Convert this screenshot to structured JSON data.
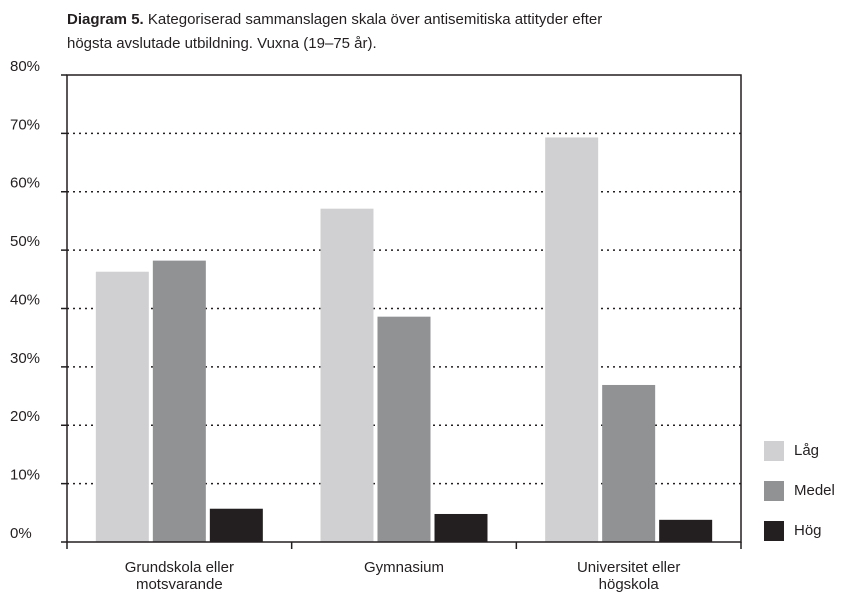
{
  "chart_data": {
    "type": "bar",
    "title": {
      "label": "Diagram 5.",
      "lines": [
        "Kategoriserad sammanslagen skala över antisemitiska attityder efter",
        "högsta avslutade utbildning. Vuxna (19–75 år)."
      ]
    },
    "categories": [
      [
        "Grundskola eller",
        "motsvarande"
      ],
      [
        "Gymnasium"
      ],
      [
        "Universitet eller",
        "högskola"
      ]
    ],
    "series": [
      {
        "name": "Låg",
        "color": "#d0d0d2",
        "values": [
          46.3,
          57.1,
          69.3
        ]
      },
      {
        "name": "Medel",
        "color": "#919294",
        "values": [
          48.2,
          38.6,
          26.9
        ]
      },
      {
        "name": "Hög",
        "color": "#231f20",
        "values": [
          5.7,
          4.8,
          3.8
        ]
      }
    ],
    "ylim": [
      0,
      80
    ],
    "yticks": [
      {
        "value": 0,
        "label": "0%"
      },
      {
        "value": 10,
        "label": "10%"
      },
      {
        "value": 20,
        "label": "20%"
      },
      {
        "value": 30,
        "label": "30%"
      },
      {
        "value": 40,
        "label": "40%"
      },
      {
        "value": 50,
        "label": "50%"
      },
      {
        "value": 60,
        "label": "60%"
      },
      {
        "value": 70,
        "label": "70%"
      },
      {
        "value": 80,
        "label": "80%"
      }
    ],
    "grid": true,
    "legend": "right"
  }
}
